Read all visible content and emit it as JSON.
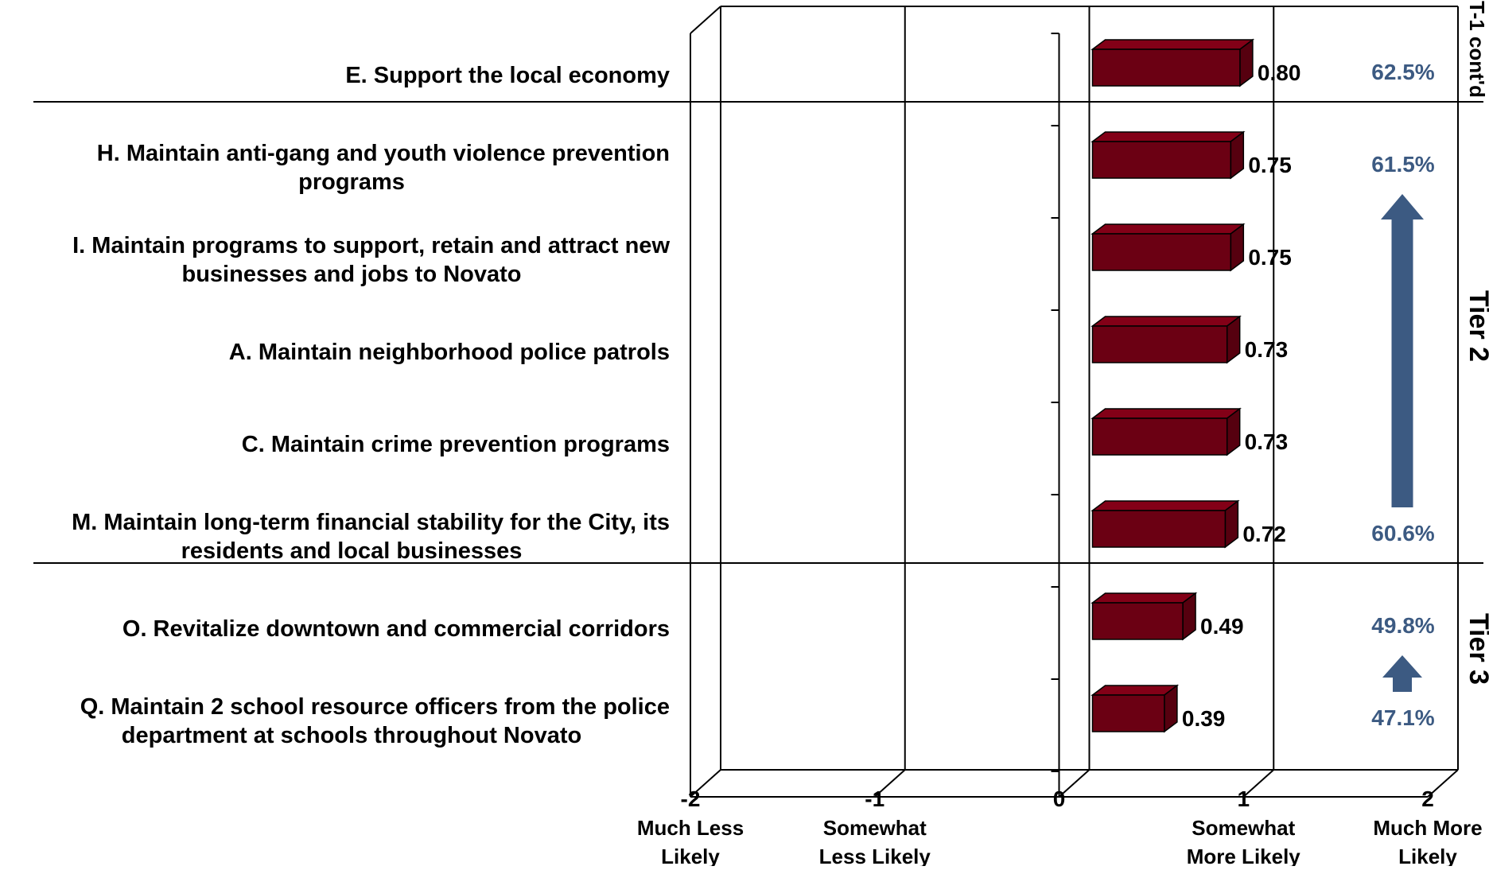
{
  "chart_data": {
    "type": "bar",
    "orientation": "horizontal",
    "style": "3d",
    "xlim": [
      -2,
      2
    ],
    "x_ticks": [
      {
        "value": -2,
        "label": "-2",
        "text": [
          "Much Less",
          "Likely"
        ]
      },
      {
        "value": -1,
        "label": "-1",
        "text": [
          "Somewhat",
          "Less Likely"
        ]
      },
      {
        "value": 0,
        "label": "0",
        "text": []
      },
      {
        "value": 1,
        "label": "1",
        "text": [
          "Somewhat",
          "More Likely"
        ]
      },
      {
        "value": 2,
        "label": "2",
        "text": [
          "Much More",
          "Likely"
        ]
      }
    ],
    "grid": true,
    "bar_color": "#6b0013",
    "annotation_color": "#3c5a82",
    "categories": [
      {
        "label": [
          "E. Support the local economy"
        ],
        "value": 0.8,
        "value_label": "0.80",
        "percent": "62.5%"
      },
      {
        "label": [
          "H. Maintain anti-gang and youth violence prevention",
          "programs"
        ],
        "value": 0.75,
        "value_label": "0.75",
        "percent": "61.5%"
      },
      {
        "label": [
          "I. Maintain programs to support, retain and attract new",
          "businesses and jobs to Novato"
        ],
        "value": 0.75,
        "value_label": "0.75",
        "percent": ""
      },
      {
        "label": [
          "A. Maintain neighborhood police patrols"
        ],
        "value": 0.73,
        "value_label": "0.73",
        "percent": ""
      },
      {
        "label": [
          "C. Maintain crime prevention programs"
        ],
        "value": 0.73,
        "value_label": "0.73",
        "percent": ""
      },
      {
        "label": [
          "M. Maintain long-term financial stability for the City, its",
          "residents and local businesses"
        ],
        "value": 0.72,
        "value_label": "0.72",
        "percent": "60.6%"
      },
      {
        "label": [
          "O. Revitalize downtown and commercial corridors"
        ],
        "value": 0.49,
        "value_label": "0.49",
        "percent": "49.8%"
      },
      {
        "label": [
          "Q. Maintain 2 school resource officers from the police",
          "department at schools throughout Novato"
        ],
        "value": 0.39,
        "value_label": "0.39",
        "percent": "47.1%"
      }
    ],
    "tiers": [
      {
        "label": "T-1 cont'd",
        "first": 0,
        "last": 0
      },
      {
        "label": "Tier 2",
        "first": 1,
        "last": 5
      },
      {
        "label": "Tier 3",
        "first": 6,
        "last": 7
      }
    ]
  }
}
